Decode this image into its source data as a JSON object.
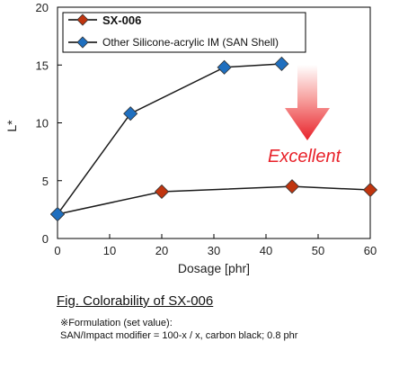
{
  "chart_data": {
    "type": "line",
    "xlabel": "Dosage [phr]",
    "ylabel": "L*",
    "xlim": [
      0,
      60
    ],
    "ylim": [
      0,
      20
    ],
    "xticks": [
      0,
      10,
      20,
      30,
      40,
      50,
      60
    ],
    "yticks": [
      0,
      5,
      10,
      15,
      20
    ],
    "grid": false,
    "legend_position": "top-left",
    "series": [
      {
        "name": "SX-006",
        "marker": "diamond",
        "color": "#c0350f",
        "points": [
          [
            0,
            2.1
          ],
          [
            20,
            4.05
          ],
          [
            45,
            4.5
          ],
          [
            60,
            4.2
          ]
        ]
      },
      {
        "name": "Other Silicone-acrylic IM (SAN Shell)",
        "marker": "diamond",
        "color": "#1f6fbf",
        "points": [
          [
            0,
            2.1
          ],
          [
            14,
            10.8
          ],
          [
            32,
            14.8
          ],
          [
            43,
            15.1
          ]
        ]
      }
    ],
    "annotation": {
      "text": "Excellent",
      "color": "#e8222a",
      "arrow": "down"
    }
  },
  "caption": "Fig.  Colorability of SX-006",
  "notes": {
    "line1": "※Formulation (set value):",
    "line2": "SAN/Impact modifier = 100-x / x, carbon black; 0.8 phr"
  }
}
